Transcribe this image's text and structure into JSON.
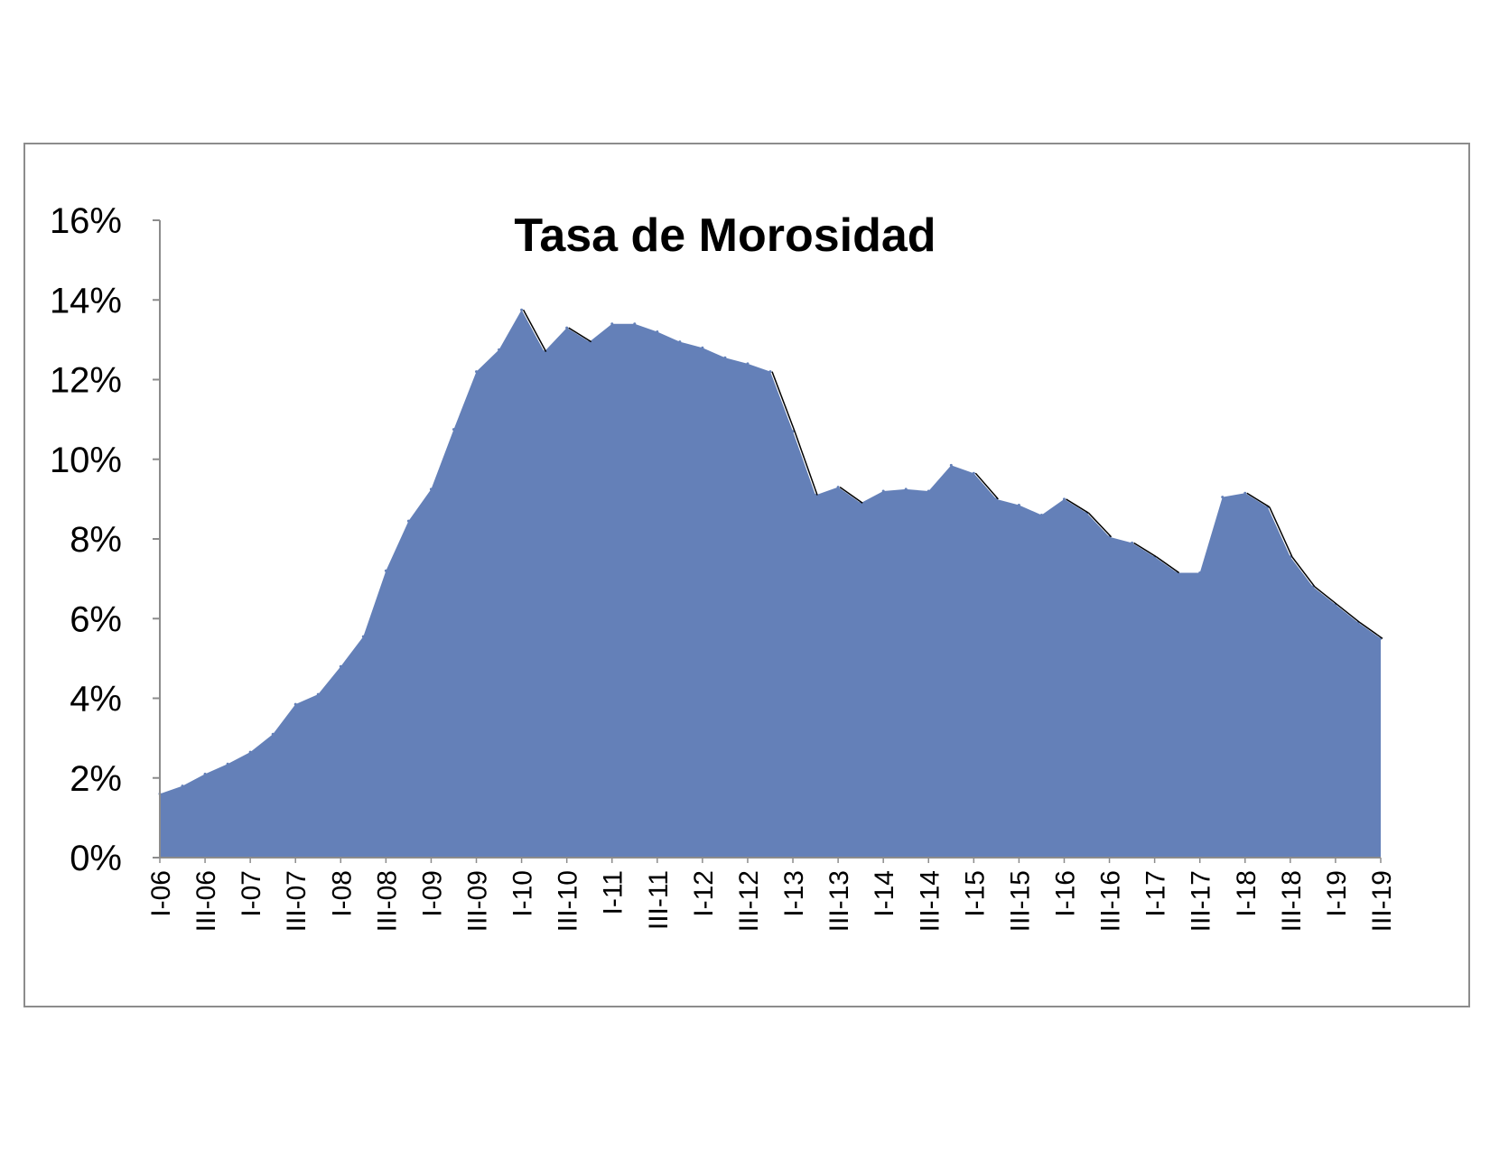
{
  "chart_data": {
    "type": "area",
    "title": "Tasa de Morosidad",
    "xlabel": "",
    "ylabel": "",
    "ylim": [
      0,
      16
    ],
    "y_ticks": [
      "0%",
      "2%",
      "4%",
      "6%",
      "8%",
      "10%",
      "12%",
      "14%",
      "16%"
    ],
    "grid": false,
    "legend": "none",
    "fill_color": "#6480b8",
    "edge_color": "#000000",
    "x_tick_labels": [
      "I-06",
      "III-06",
      "I-07",
      "III-07",
      "I-08",
      "III-08",
      "I-09",
      "III-09",
      "I-10",
      "III-10",
      "I-11",
      "III-11",
      "I-12",
      "III-12",
      "I-13",
      "III-13",
      "I-14",
      "III-14",
      "I-15",
      "III-15",
      "I-16",
      "III-16",
      "I-17",
      "III-17",
      "I-18",
      "III-18",
      "I-19",
      "III-19"
    ],
    "x": [
      "I-06",
      "II-06",
      "III-06",
      "IV-06",
      "I-07",
      "II-07",
      "III-07",
      "IV-07",
      "I-08",
      "II-08",
      "III-08",
      "IV-08",
      "I-09",
      "II-09",
      "III-09",
      "IV-09",
      "I-10",
      "II-10",
      "III-10",
      "IV-10",
      "I-11",
      "II-11",
      "III-11",
      "IV-11",
      "I-12",
      "II-12",
      "III-12",
      "IV-12",
      "I-13",
      "II-13",
      "III-13",
      "IV-13",
      "I-14",
      "II-14",
      "III-14",
      "IV-14",
      "I-15",
      "II-15",
      "III-15",
      "IV-15",
      "I-16",
      "II-16",
      "III-16",
      "IV-16",
      "I-17",
      "II-17",
      "III-17",
      "IV-17",
      "I-18",
      "II-18",
      "III-18",
      "IV-18",
      "I-19",
      "II-19",
      "III-19"
    ],
    "series": [
      {
        "values": [
          1.6,
          1.8,
          2.1,
          2.35,
          2.65,
          3.1,
          3.85,
          4.1,
          4.8,
          5.55,
          7.2,
          8.45,
          9.25,
          10.75,
          12.2,
          12.75,
          13.75,
          12.7,
          13.3,
          12.95,
          13.4,
          13.4,
          13.2,
          12.95,
          12.8,
          12.55,
          12.4,
          12.2,
          10.7,
          9.1,
          9.3,
          8.9,
          9.2,
          9.25,
          9.2,
          9.85,
          9.65,
          9.0,
          8.85,
          8.6,
          9.0,
          8.65,
          8.05,
          7.9,
          7.55,
          7.15,
          7.15,
          9.05,
          9.15,
          8.8,
          7.55,
          6.8,
          6.35,
          5.9,
          5.5
        ]
      }
    ]
  }
}
